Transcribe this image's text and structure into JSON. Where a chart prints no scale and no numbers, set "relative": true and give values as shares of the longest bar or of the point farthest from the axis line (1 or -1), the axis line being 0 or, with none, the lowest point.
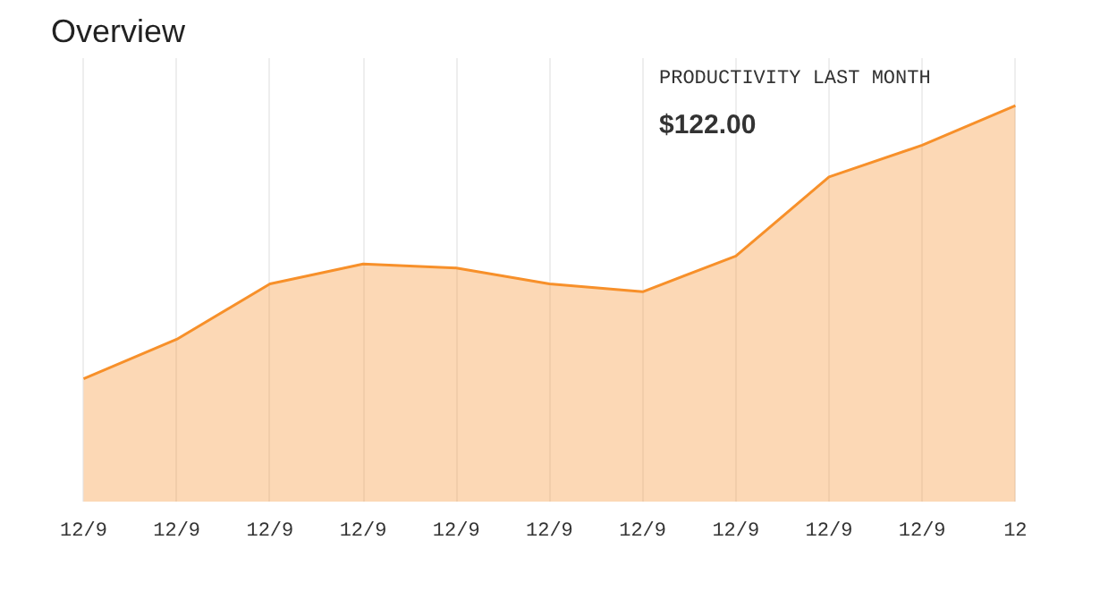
{
  "chart_data": {
    "type": "area",
    "title": "Overview",
    "relative": true,
    "categories": [
      "12/9",
      "12/9",
      "12/9",
      "12/9",
      "12/9",
      "12/9",
      "12/9",
      "12/9",
      "12/9",
      "12/9",
      "12"
    ],
    "series": [
      {
        "color": "#f7902a",
        "values": [
          0.31,
          0.41,
          0.55,
          0.6,
          0.59,
          0.55,
          0.53,
          0.62,
          0.82,
          0.9,
          1.0
        ]
      }
    ],
    "annotations": [
      "PRODUCTIVITY LAST MONTH",
      "$122.00"
    ],
    "grid": "x"
  }
}
